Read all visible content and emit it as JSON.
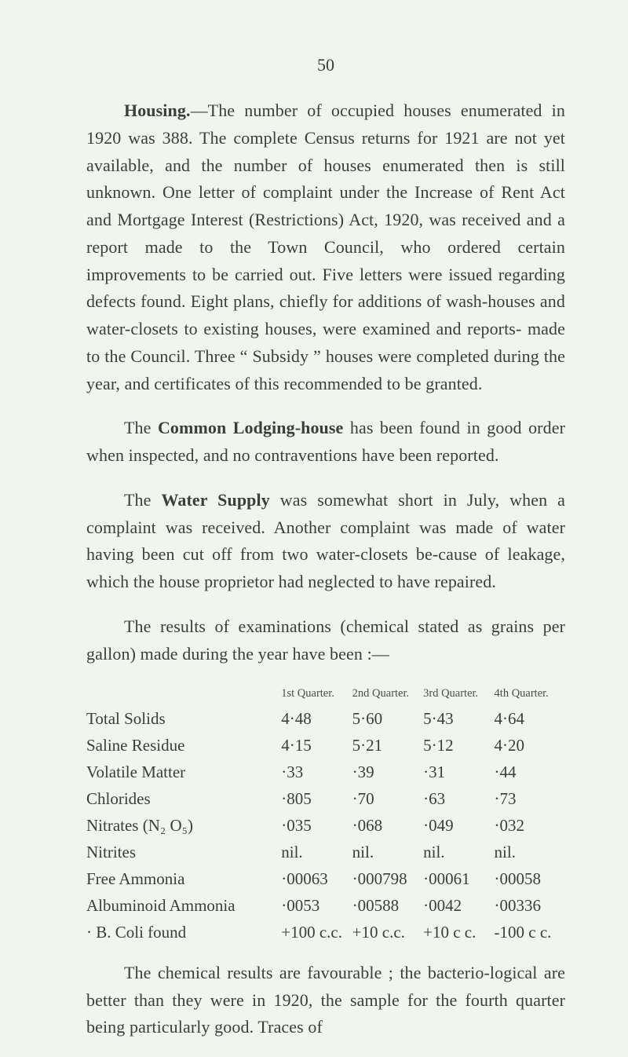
{
  "page_number": "50",
  "p1_a": "Housing.",
  "p1_b": "—The number of occupied houses enumerated in 1920 was 388. The complete Census returns for 1921 are not yet available, and the number of houses enumerated then is still unknown. One letter of complaint under the Increase of Rent Act and Mortgage Interest (Restrictions) Act, 1920, was received and a report made to the Town Council, who ordered certain improvements to be carried out. Five letters were issued regarding defects found. Eight plans, chiefly for additions of wash-houses and water-closets to existing houses, were examined and reports- made to the Council. Three “ Subsidy ” houses were completed during the year, and certificates of this recommended to be granted.",
  "p2_a": "The ",
  "p2_b": "Common Lodging-house",
  "p2_c": " has been found in good order when inspected, and no contraventions have been reported.",
  "p3_a": "The ",
  "p3_b": "Water Supply",
  "p3_c": " was somewhat short in July, when a complaint was received. Another complaint was made of water having been cut off from two water-closets be-cause of leakage, which the house proprietor had neglected to have repaired.",
  "p4": "The results of examinations (chemical stated as grains per gallon) made during the year have been :—",
  "table": {
    "headers": [
      "1st Quarter.",
      "2nd Quarter.",
      "3rd Quarter.",
      "4th Quarter."
    ],
    "rows": [
      {
        "label": "Total Solids",
        "q": [
          "4·48",
          "5·60",
          "5·43",
          "4·64"
        ]
      },
      {
        "label": "Saline Residue",
        "q": [
          "4·15",
          "5·21",
          "5·12",
          "4·20"
        ]
      },
      {
        "label": "Volatile Matter",
        "q": [
          "·33",
          "·39",
          "·31",
          "·44"
        ]
      },
      {
        "label": "Chlorides",
        "q": [
          "·805",
          "·70",
          "·63",
          "·73"
        ]
      },
      {
        "label": "Nitrates (N₂ O₅)",
        "q": [
          "·035",
          "·068",
          "·049",
          "·032"
        ]
      },
      {
        "label": "Nitrites",
        "q": [
          "nil.",
          "nil.",
          "nil.",
          "nil."
        ]
      },
      {
        "label": "Free Ammonia",
        "q": [
          "·00063",
          "·000798",
          "·00061",
          "·00058"
        ]
      },
      {
        "label": "Albuminoid Ammonia",
        "q": [
          "·0053",
          "·00588",
          "·0042",
          "·00336"
        ]
      },
      {
        "label": "· B. Coli found",
        "q": [
          "+100 c.c.",
          "+10 c.c.",
          "+10 c c.",
          "-100 c c."
        ]
      }
    ]
  },
  "p5": "The chemical results are favourable ; the bacterio-logical are better than they were in 1920, the sample for the fourth quarter being particularly good. Traces of"
}
